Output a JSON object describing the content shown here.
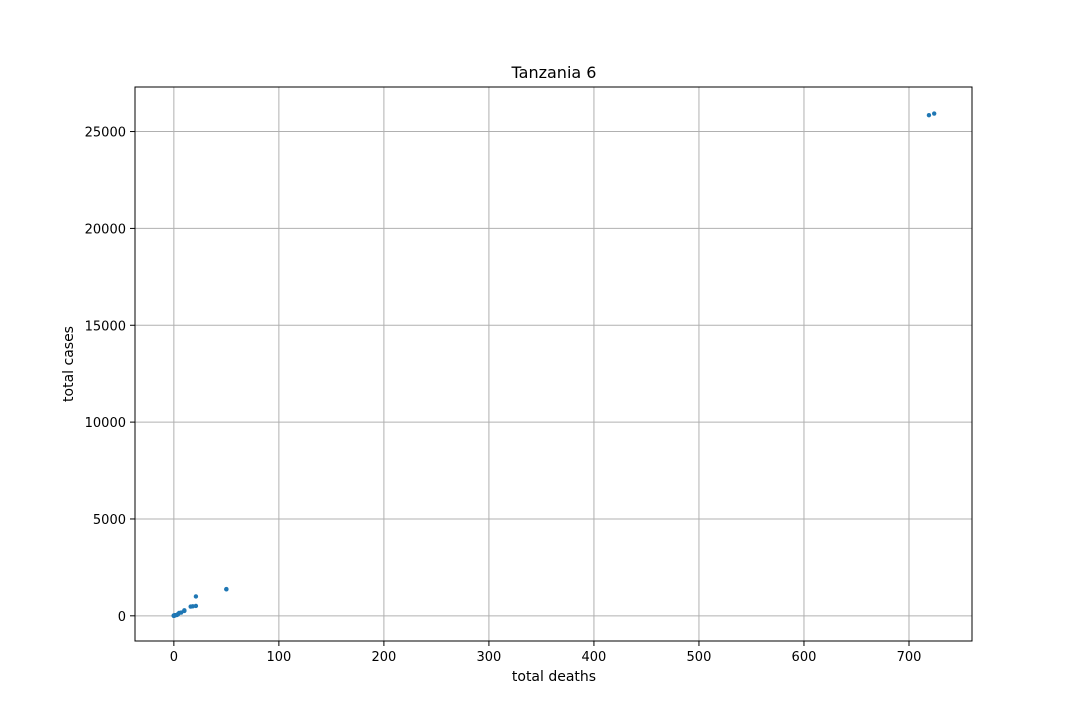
{
  "chart_data": {
    "type": "scatter",
    "title": "Tanzania 6",
    "xlabel": "total deaths",
    "ylabel": "total cases",
    "xlim": [
      -37,
      760
    ],
    "ylim": [
      -1300,
      27300
    ],
    "xticks": [
      0,
      100,
      200,
      300,
      400,
      500,
      600,
      700
    ],
    "yticks": [
      0,
      5000,
      10000,
      15000,
      20000,
      25000
    ],
    "grid": true,
    "color": "#1f77b4",
    "points": [
      {
        "x": 0,
        "y": 0
      },
      {
        "x": 0,
        "y": 1
      },
      {
        "x": 0,
        "y": 6
      },
      {
        "x": 0,
        "y": 12
      },
      {
        "x": 0,
        "y": 19
      },
      {
        "x": 1,
        "y": 20
      },
      {
        "x": 1,
        "y": 22
      },
      {
        "x": 1,
        "y": 24
      },
      {
        "x": 1,
        "y": 32
      },
      {
        "x": 3,
        "y": 46
      },
      {
        "x": 3,
        "y": 49
      },
      {
        "x": 4,
        "y": 88
      },
      {
        "x": 5,
        "y": 147
      },
      {
        "x": 7,
        "y": 170
      },
      {
        "x": 10,
        "y": 254
      },
      {
        "x": 10,
        "y": 284
      },
      {
        "x": 16,
        "y": 480
      },
      {
        "x": 18,
        "y": 492
      },
      {
        "x": 21,
        "y": 509
      },
      {
        "x": 21,
        "y": 1000
      },
      {
        "x": 50,
        "y": 1366
      },
      {
        "x": 50,
        "y": 1380
      },
      {
        "x": 719,
        "y": 25846
      },
      {
        "x": 724,
        "y": 25931
      }
    ]
  }
}
